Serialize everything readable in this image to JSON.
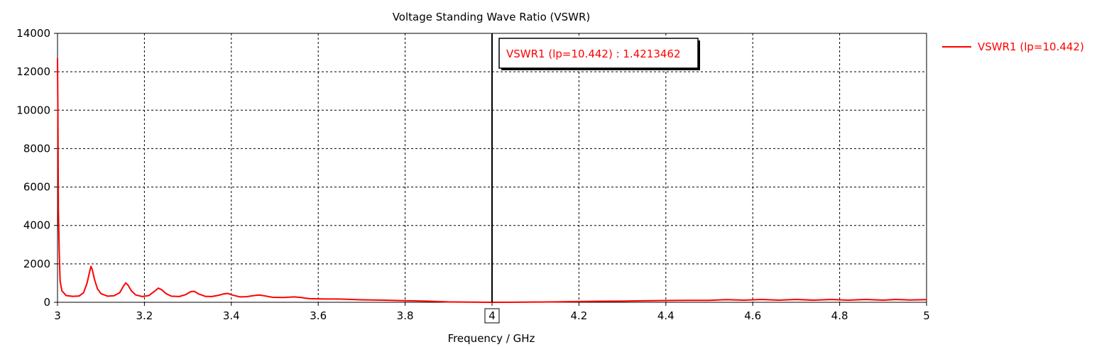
{
  "chart_data": {
    "type": "line",
    "title": "Voltage Standing Wave Ratio (VSWR)",
    "xlabel": "Frequency / GHz",
    "ylabel": "",
    "xlim": [
      3,
      5
    ],
    "ylim": [
      0,
      14000
    ],
    "x_ticks": [
      "3",
      "3.2",
      "3.4",
      "3.6",
      "3.8",
      "4",
      "4.2",
      "4.4",
      "4.6",
      "4.8",
      "5"
    ],
    "y_ticks": [
      "0",
      "2000",
      "4000",
      "6000",
      "8000",
      "10000",
      "12000",
      "14000"
    ],
    "grid": true,
    "legend_position": "top-right",
    "marker": {
      "x": 4,
      "x_label": "4",
      "label": "VSWR1 (lp=10.442) : 1.4213462"
    },
    "series": [
      {
        "name": "VSWR1 (lp=10.442)",
        "color": "#ff0000",
        "points": [
          [
            3.0,
            12700
          ],
          [
            3.001,
            9500
          ],
          [
            3.002,
            4800
          ],
          [
            3.004,
            2600
          ],
          [
            3.006,
            1100
          ],
          [
            3.01,
            600
          ],
          [
            3.02,
            350
          ],
          [
            3.035,
            310
          ],
          [
            3.05,
            330
          ],
          [
            3.06,
            500
          ],
          [
            3.068,
            1000
          ],
          [
            3.074,
            1600
          ],
          [
            3.077,
            1870
          ],
          [
            3.08,
            1700
          ],
          [
            3.085,
            1200
          ],
          [
            3.092,
            700
          ],
          [
            3.1,
            450
          ],
          [
            3.115,
            320
          ],
          [
            3.13,
            340
          ],
          [
            3.143,
            500
          ],
          [
            3.152,
            850
          ],
          [
            3.157,
            1010
          ],
          [
            3.162,
            900
          ],
          [
            3.17,
            600
          ],
          [
            3.18,
            380
          ],
          [
            3.195,
            300
          ],
          [
            3.21,
            350
          ],
          [
            3.222,
            550
          ],
          [
            3.232,
            740
          ],
          [
            3.24,
            650
          ],
          [
            3.25,
            450
          ],
          [
            3.262,
            320
          ],
          [
            3.28,
            300
          ],
          [
            3.295,
            400
          ],
          [
            3.307,
            560
          ],
          [
            3.315,
            570
          ],
          [
            3.325,
            430
          ],
          [
            3.34,
            310
          ],
          [
            3.355,
            300
          ],
          [
            3.37,
            360
          ],
          [
            3.383,
            440
          ],
          [
            3.392,
            460
          ],
          [
            3.402,
            380
          ],
          [
            3.42,
            280
          ],
          [
            3.435,
            290
          ],
          [
            3.452,
            350
          ],
          [
            3.465,
            380
          ],
          [
            3.478,
            330
          ],
          [
            3.495,
            260
          ],
          [
            3.52,
            250
          ],
          [
            3.545,
            280
          ],
          [
            3.56,
            250
          ],
          [
            3.58,
            190
          ],
          [
            3.62,
            170
          ],
          [
            3.65,
            170
          ],
          [
            3.7,
            130
          ],
          [
            3.75,
            110
          ],
          [
            3.8,
            85
          ],
          [
            3.85,
            60
          ],
          [
            3.88,
            35
          ],
          [
            3.9,
            20
          ],
          [
            3.95,
            10
          ],
          [
            4.0,
            2
          ],
          [
            4.05,
            5
          ],
          [
            4.1,
            12
          ],
          [
            4.15,
            25
          ],
          [
            4.2,
            40
          ],
          [
            4.25,
            55
          ],
          [
            4.3,
            60
          ],
          [
            4.35,
            80
          ],
          [
            4.4,
            90
          ],
          [
            4.45,
            100
          ],
          [
            4.5,
            100
          ],
          [
            4.54,
            140
          ],
          [
            4.58,
            110
          ],
          [
            4.62,
            150
          ],
          [
            4.66,
            110
          ],
          [
            4.7,
            150
          ],
          [
            4.74,
            110
          ],
          [
            4.78,
            150
          ],
          [
            4.82,
            110
          ],
          [
            4.86,
            150
          ],
          [
            4.9,
            110
          ],
          [
            4.93,
            150
          ],
          [
            4.96,
            120
          ],
          [
            5.0,
            140
          ]
        ]
      }
    ]
  }
}
